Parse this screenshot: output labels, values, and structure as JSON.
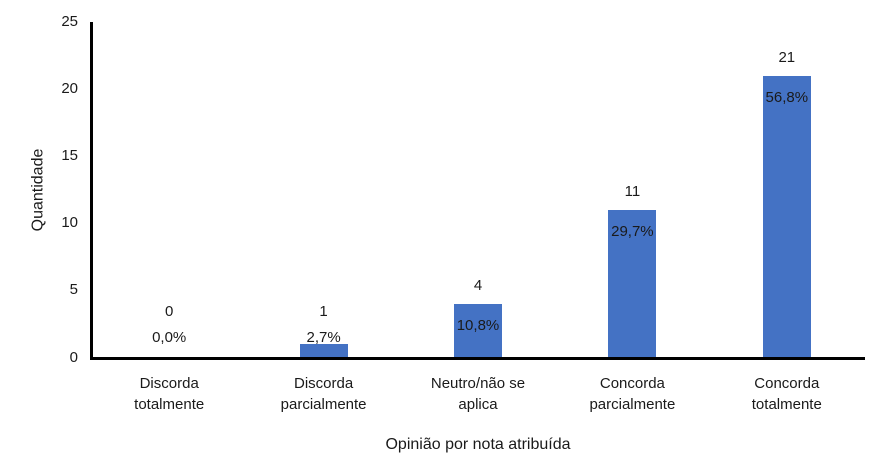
{
  "chart_data": {
    "type": "bar",
    "title": "",
    "categories": [
      "Discorda totalmente",
      "Discorda parcialmente",
      "Neutro/não se aplica",
      "Concorda parcialmente",
      "Concorda totalmente"
    ],
    "values": [
      0,
      1,
      4,
      11,
      21
    ],
    "value_labels": [
      "0",
      "1",
      "4",
      "11",
      "21"
    ],
    "percent_labels": [
      "0,0%",
      "2,7%",
      "10,8%",
      "29,7%",
      "56,8%"
    ],
    "xlabel": "Opinião por nota atribuída",
    "ylabel": "Quantidade",
    "ylim": [
      0,
      25
    ],
    "ytick_step": 5,
    "ytick_labels": [
      "0",
      "5",
      "10",
      "15",
      "20",
      "25"
    ],
    "grid": false,
    "legend_position": "none",
    "bar_color": "#4472C4",
    "axis_color": "#000000",
    "text_color": "#1a1a1a"
  }
}
